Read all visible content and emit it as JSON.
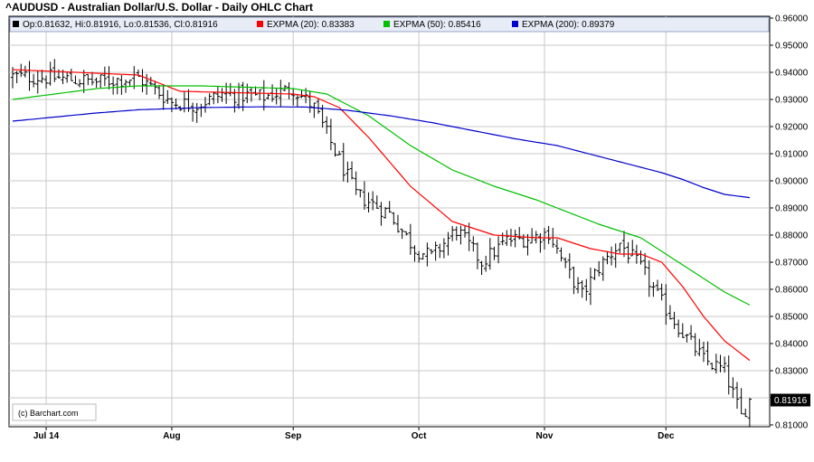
{
  "title": "^AUDUSD - Australian Dollar/U.S. Dollar - Daily OHLC Chart",
  "credit": "(c) Barchart.com",
  "legend": [
    {
      "label": "Op:0.81632, Hi:0.81916, Lo:0.81536, Cl:0.81916",
      "color": "#000000"
    },
    {
      "label": "EXPMA (20): 0.83383",
      "color": "#ff0000"
    },
    {
      "label": "EXPMA (50): 0.85416",
      "color": "#00c000"
    },
    {
      "label": "EXPMA (200): 0.89379",
      "color": "#0000cc"
    }
  ],
  "last_price_label": "0.81916",
  "colors": {
    "price": "#000000",
    "ema20": "#ff0000",
    "ema50": "#00c000",
    "ema200": "#0000cc",
    "grid": "#c8c8c8",
    "legend_bg": "#e8ecf6"
  },
  "chart_data": {
    "type": "ohlc",
    "ylim": [
      0.81,
      0.96
    ],
    "yticks": [
      "0.81000",
      "0.82000",
      "0.83000",
      "0.84000",
      "0.85000",
      "0.86000",
      "0.87000",
      "0.88000",
      "0.89000",
      "0.90000",
      "0.91000",
      "0.92000",
      "0.93000",
      "0.94000",
      "0.95000",
      "0.96000"
    ],
    "x_tick_labels": [
      {
        "label": "Jul 14",
        "index": 8
      },
      {
        "label": "Aug",
        "index": 38
      },
      {
        "label": "Sep",
        "index": 67
      },
      {
        "label": "Oct",
        "index": 97
      },
      {
        "label": "Nov",
        "index": 127
      },
      {
        "label": "Dec",
        "index": 156
      }
    ],
    "n_bars": 177,
    "key_closes": [
      [
        0,
        0.9385
      ],
      [
        10,
        0.938
      ],
      [
        20,
        0.9365
      ],
      [
        30,
        0.938
      ],
      [
        38,
        0.929
      ],
      [
        44,
        0.928
      ],
      [
        50,
        0.932
      ],
      [
        60,
        0.931
      ],
      [
        67,
        0.934
      ],
      [
        72,
        0.927
      ],
      [
        76,
        0.914
      ],
      [
        82,
        0.895
      ],
      [
        90,
        0.888
      ],
      [
        96,
        0.875
      ],
      [
        100,
        0.872
      ],
      [
        106,
        0.882
      ],
      [
        112,
        0.87
      ],
      [
        118,
        0.878
      ],
      [
        124,
        0.879
      ],
      [
        128,
        0.881
      ],
      [
        132,
        0.868
      ],
      [
        136,
        0.858
      ],
      [
        140,
        0.868
      ],
      [
        145,
        0.877
      ],
      [
        150,
        0.868
      ],
      [
        155,
        0.855
      ],
      [
        160,
        0.844
      ],
      [
        165,
        0.834
      ],
      [
        170,
        0.83
      ],
      [
        174,
        0.813
      ],
      [
        176,
        0.8192
      ]
    ],
    "series": [
      {
        "name": "EXPMA (20)",
        "points": [
          [
            0,
            0.941
          ],
          [
            30,
            0.939
          ],
          [
            40,
            0.933
          ],
          [
            67,
            0.932
          ],
          [
            72,
            0.931
          ],
          [
            78,
            0.927
          ],
          [
            85,
            0.916
          ],
          [
            95,
            0.898
          ],
          [
            105,
            0.885
          ],
          [
            115,
            0.88
          ],
          [
            125,
            0.879
          ],
          [
            130,
            0.879
          ],
          [
            138,
            0.875
          ],
          [
            145,
            0.873
          ],
          [
            150,
            0.873
          ],
          [
            155,
            0.87
          ],
          [
            160,
            0.861
          ],
          [
            165,
            0.85
          ],
          [
            170,
            0.841
          ],
          [
            176,
            0.8338
          ]
        ]
      },
      {
        "name": "EXPMA (50)",
        "points": [
          [
            0,
            0.93
          ],
          [
            20,
            0.934
          ],
          [
            30,
            0.935
          ],
          [
            45,
            0.935
          ],
          [
            67,
            0.934
          ],
          [
            75,
            0.932
          ],
          [
            85,
            0.924
          ],
          [
            95,
            0.913
          ],
          [
            105,
            0.904
          ],
          [
            115,
            0.898
          ],
          [
            125,
            0.893
          ],
          [
            130,
            0.89
          ],
          [
            140,
            0.884
          ],
          [
            150,
            0.879
          ],
          [
            155,
            0.874
          ],
          [
            160,
            0.869
          ],
          [
            165,
            0.864
          ],
          [
            170,
            0.859
          ],
          [
            176,
            0.8542
          ]
        ]
      },
      {
        "name": "EXPMA (200)",
        "points": [
          [
            0,
            0.922
          ],
          [
            10,
            0.9235
          ],
          [
            20,
            0.925
          ],
          [
            30,
            0.9262
          ],
          [
            45,
            0.927
          ],
          [
            60,
            0.9273
          ],
          [
            70,
            0.9272
          ],
          [
            80,
            0.926
          ],
          [
            90,
            0.924
          ],
          [
            100,
            0.9215
          ],
          [
            110,
            0.9185
          ],
          [
            120,
            0.9155
          ],
          [
            130,
            0.913
          ],
          [
            140,
            0.909
          ],
          [
            150,
            0.905
          ],
          [
            155,
            0.903
          ],
          [
            160,
            0.9005
          ],
          [
            165,
            0.8975
          ],
          [
            170,
            0.895
          ],
          [
            176,
            0.8938
          ]
        ]
      }
    ]
  }
}
